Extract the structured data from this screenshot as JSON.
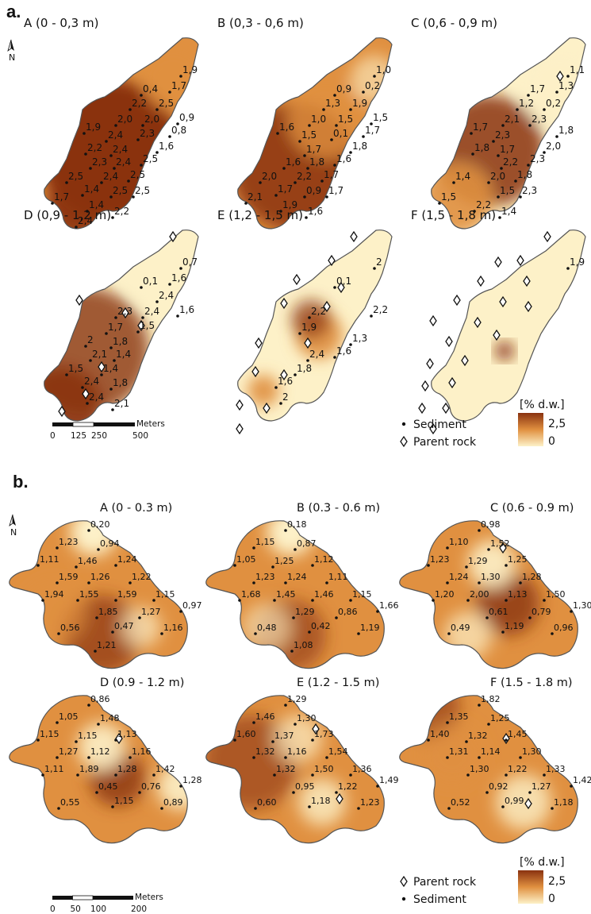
{
  "section_a": {
    "label": "a.",
    "panels": [
      {
        "title": "A (0 - 0,3 m)",
        "labels": [
          "1,9",
          "1,7",
          "0,4",
          "2,2",
          "2,5",
          "0,9",
          "1,9",
          "2,0",
          "2,0",
          "0,8",
          "2,4",
          "2,3",
          "1,6",
          "2,2",
          "2,4",
          "2,5",
          "2,3",
          "2,4",
          "2,5",
          "2,5",
          "2,4",
          "2,5",
          "1,4",
          "2,5",
          "1,7",
          "1,4",
          "2,2",
          "2,4"
        ]
      },
      {
        "title": "B (0,3 - 0,6 m)",
        "labels": [
          "1,0",
          "0,2",
          "0,9",
          "1,3",
          "1,9",
          "1,5",
          "1,6",
          "1,0",
          "1,5",
          "1,7",
          "1,5",
          "0,1",
          "1,8",
          "1,7",
          "1,6",
          "1,6",
          "1,8",
          "1,7",
          "2,0",
          "2,2",
          "1,7",
          "1,7",
          "0,9",
          "2,1",
          "1,9",
          "1,6"
        ]
      },
      {
        "title": "C (0,6 - 0,9 m)",
        "labels": [
          "1,1",
          "1,3",
          "1,7",
          "1,2",
          "0,2",
          "1,7",
          "2,1",
          "2,3",
          "1,8",
          "2,3",
          "2,0",
          "1,8",
          "1,7",
          "2,3",
          "2,2",
          "1,8",
          "1,4",
          "2,0",
          "2,3",
          "1,5",
          "1,5",
          "2,2",
          "1,4"
        ]
      },
      {
        "title": "D (0,9 - 1,2 m)",
        "labels": [
          "0,7",
          "1,6",
          "0,1",
          "2,4",
          "1,6",
          "2,3",
          "2,4",
          "1,7",
          "1,5",
          "2",
          "1,8",
          "2,1",
          "1,4",
          "1,5",
          "1,4",
          "2,4",
          "1,8",
          "2,4",
          "2,1"
        ]
      },
      {
        "title": "E (1,2 - 1,5 m)",
        "labels": [
          "2",
          "0,1",
          "2,2",
          "2,2",
          "1,9",
          "1,3",
          "1,6",
          "2,4",
          "1,8",
          "1,6",
          "2"
        ]
      },
      {
        "title": "F (1,5 - 1,8 m)",
        "labels": [
          "1,9"
        ]
      }
    ],
    "scale": {
      "ticks": [
        "0",
        "125",
        "250",
        "500"
      ],
      "unit": "Meters"
    },
    "legend": {
      "items": [
        "Sediment",
        "Parent rock"
      ],
      "unit": "[% d.w.]",
      "max": "2,5",
      "min": "0"
    }
  },
  "section_b": {
    "label": "b.",
    "panels": [
      {
        "title": "A (0 - 0.3 m)",
        "labels": [
          "0,20",
          "1,23",
          "0,94",
          "1,11",
          "1,46",
          "1,24",
          "1,59",
          "1,26",
          "1,22",
          "1,94",
          "1,55",
          "1,59",
          "1,15",
          "0,97",
          "1,85",
          "1,27",
          "0,56",
          "0,47",
          "1,16",
          "1,21"
        ]
      },
      {
        "title": "B (0.3 - 0.6 m)",
        "labels": [
          "0,18",
          "1,15",
          "0,87",
          "1,05",
          "1,25",
          "1,12",
          "1,23",
          "1,24",
          "1,11",
          "1,68",
          "1,45",
          "1,46",
          "1,15",
          "1,66",
          "1,29",
          "0,86",
          "0,48",
          "0,42",
          "1,19",
          "1,08"
        ]
      },
      {
        "title": "C (0.6 - 0.9 m)",
        "labels": [
          "0,98",
          "1,10",
          "1,52",
          "1,23",
          "1,29",
          "1,25",
          "1,24",
          "1,30",
          "1,28",
          "1,20",
          "2,00",
          "1,13",
          "1,50",
          "1,30",
          "0,61",
          "0,79",
          "0,49",
          "1,19",
          "0,96"
        ]
      },
      {
        "title": "D (0.9 - 1.2 m)",
        "labels": [
          "0,86",
          "1,05",
          "1,48",
          "1,15",
          "1,15",
          "1,13",
          "1,27",
          "1,12",
          "1,16",
          "1,11",
          "1,89",
          "1,28",
          "1,42",
          "1,28",
          "0,45",
          "0,76",
          "0,55",
          "1,15",
          "0,89"
        ]
      },
      {
        "title": "E (1.2 - 1.5 m)",
        "labels": [
          "1,29",
          "1,46",
          "1,30",
          "1,60",
          "1,37",
          "1,73",
          "1,32",
          "1,16",
          "1,54",
          "1,32",
          "1,50",
          "1,36",
          "1,49",
          "0,95",
          "1,22",
          "0,60",
          "1,18",
          "1,23"
        ]
      },
      {
        "title": "F (1.5 - 1.8 m)",
        "labels": [
          "1,82",
          "1,35",
          "1,25",
          "1,40",
          "1,32",
          "1,45",
          "1,31",
          "1,14",
          "1,30",
          "1,30",
          "1,22",
          "1,33",
          "1,42",
          "0,92",
          "1,27",
          "0,52",
          "0,99",
          "1,18"
        ]
      }
    ],
    "scale": {
      "ticks": [
        "0",
        "50",
        "100",
        "200"
      ],
      "unit": "Meters"
    },
    "legend": {
      "items": [
        "Parent rock",
        "Sediment"
      ],
      "unit": "[% d.w.]",
      "max": "2,5",
      "min": "0"
    }
  },
  "colors": {
    "high": "#8a3210",
    "mid": "#e09040",
    "low": "#fdf1c8",
    "outline": "#555555"
  },
  "north_arrow": "N"
}
